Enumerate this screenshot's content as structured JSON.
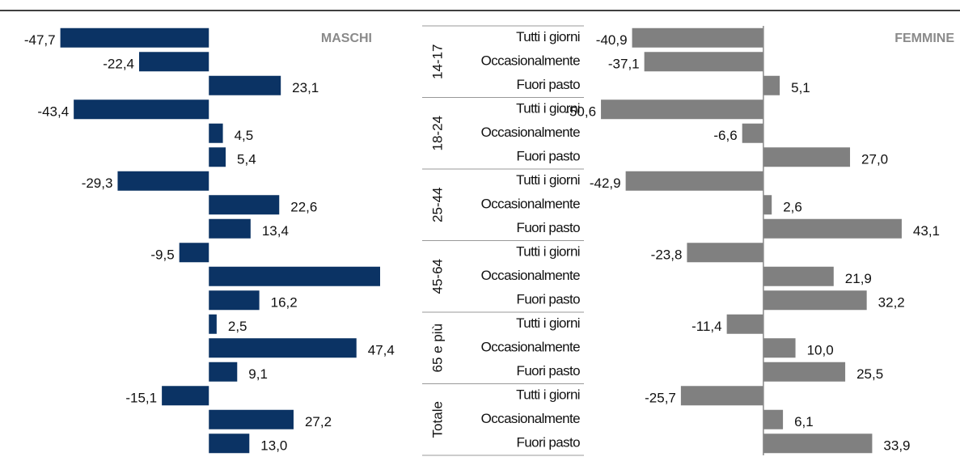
{
  "chart_data": {
    "type": "bar",
    "orientation": "horizontal",
    "groups": [
      "14-17",
      "18-24",
      "25-44",
      "45-64",
      "65 e più",
      "Totale"
    ],
    "categories": [
      "Tutti i giorni",
      "Occasionalmente",
      "Fuori pasto",
      "Tutti i giorni",
      "Occasionalmente",
      "Fuori pasto",
      "Tutti i giorni",
      "Occasionalmente",
      "Fuori pasto",
      "Tutti i giorni",
      "Occasionalmente",
      "Fuori pasto",
      "Tutti i giorni",
      "Occasionalmente",
      "Fuori pasto",
      "Tutti i giorni",
      "Occasionalmente",
      "Fuori pasto"
    ],
    "series": [
      {
        "name": "MASCHI",
        "color": "#0b3364",
        "xlim": [
          -65,
          55
        ],
        "values": [
          -47.7,
          -22.4,
          23.1,
          -43.4,
          4.5,
          5.4,
          -29.3,
          22.6,
          13.4,
          -9.5,
          55.0,
          16.2,
          2.5,
          47.4,
          9.1,
          -15.1,
          27.2,
          13.0
        ],
        "value_labels": [
          "-47,7",
          "-22,4",
          "23,1",
          "-43,4",
          "4,5",
          "5,4",
          "-29,3",
          "22,6",
          "13,4",
          "-9,5",
          null,
          "16,2",
          "2,5",
          "47,4",
          "9,1",
          "-15,1",
          "27,2",
          "13,0"
        ]
      },
      {
        "name": "FEMMINE",
        "color": "#808080",
        "xlim": [
          -52,
          60
        ],
        "values": [
          -40.9,
          -37.1,
          5.1,
          -50.6,
          -6.6,
          27.0,
          -42.9,
          2.6,
          43.1,
          -23.8,
          21.9,
          32.2,
          -11.4,
          10.0,
          25.5,
          -25.7,
          6.1,
          33.9
        ],
        "value_labels": [
          "-40,9",
          "-37,1",
          "5,1",
          "-50,6",
          "-6,6",
          "27,0",
          "-42,9",
          "2,6",
          "43,1",
          "-23,8",
          "21,9",
          "32,2",
          "-11,4",
          "10,0",
          "25,5",
          "-25,7",
          "6,1",
          "33,9"
        ]
      }
    ]
  }
}
